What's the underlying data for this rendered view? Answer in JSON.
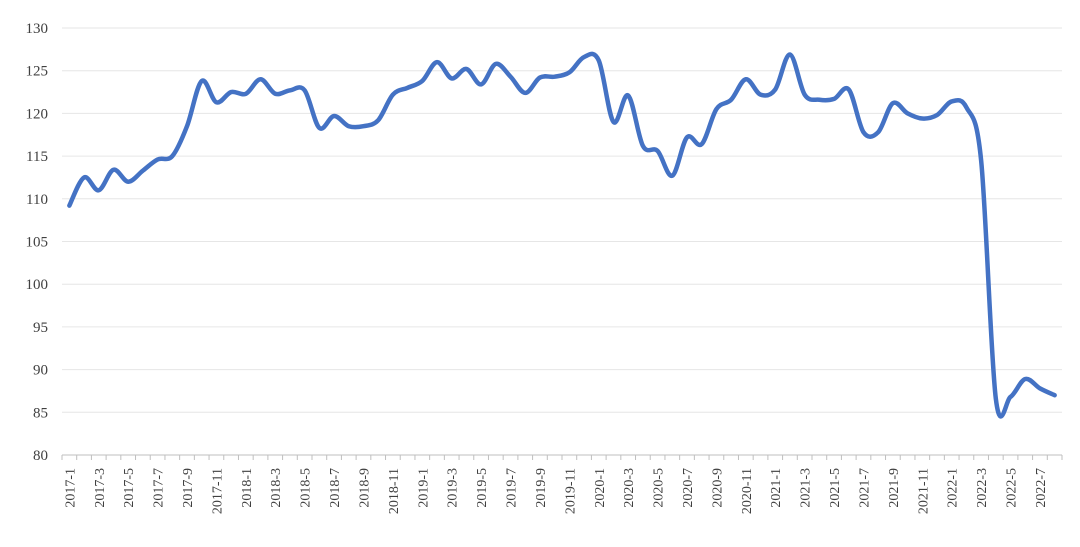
{
  "chart_data": {
    "type": "line",
    "title": "",
    "xlabel": "",
    "ylabel": "",
    "ylim": [
      80,
      130
    ],
    "yticks": [
      80,
      85,
      90,
      95,
      100,
      105,
      110,
      115,
      120,
      125,
      130
    ],
    "grid": true,
    "legend": "none",
    "categories": [
      "2017-1",
      "2017-2",
      "2017-3",
      "2017-4",
      "2017-5",
      "2017-6",
      "2017-7",
      "2017-8",
      "2017-9",
      "2017-10",
      "2017-11",
      "2017-12",
      "2018-1",
      "2018-2",
      "2018-3",
      "2018-4",
      "2018-5",
      "2018-6",
      "2018-7",
      "2018-8",
      "2018-9",
      "2018-10",
      "2018-11",
      "2018-12",
      "2019-1",
      "2019-2",
      "2019-3",
      "2019-4",
      "2019-5",
      "2019-6",
      "2019-7",
      "2019-8",
      "2019-9",
      "2019-10",
      "2019-11",
      "2019-12",
      "2020-1",
      "2020-2",
      "2020-3",
      "2020-4",
      "2020-5",
      "2020-6",
      "2020-7",
      "2020-8",
      "2020-9",
      "2020-10",
      "2020-11",
      "2020-12",
      "2021-1",
      "2021-2",
      "2021-3",
      "2021-4",
      "2021-5",
      "2021-6",
      "2021-7",
      "2021-8",
      "2021-9",
      "2021-10",
      "2021-11",
      "2021-12",
      "2022-1",
      "2022-2",
      "2022-3",
      "2022-4",
      "2022-5",
      "2022-6",
      "2022-7",
      "2022-8"
    ],
    "tick_labels": [
      "2017-1",
      "2017-3",
      "2017-5",
      "2017-7",
      "2017-9",
      "2017-11",
      "2018-1",
      "2018-3",
      "2018-5",
      "2018-7",
      "2018-9",
      "2018-11",
      "2019-1",
      "2019-3",
      "2019-5",
      "2019-7",
      "2019-9",
      "2019-11",
      "2020-1",
      "2020-3",
      "2020-5",
      "2020-7",
      "2020-9",
      "2020-11",
      "2021-1",
      "2021-3",
      "2021-5",
      "2021-7",
      "2021-9",
      "2021-11",
      "2022-1",
      "2022-3",
      "2022-5",
      "2022-7"
    ],
    "series": [
      {
        "color": "#4472C4",
        "values": [
          109.2,
          112.5,
          111.0,
          113.4,
          112.0,
          113.3,
          114.6,
          115.0,
          118.5,
          123.8,
          121.3,
          122.5,
          122.3,
          124.0,
          122.3,
          122.7,
          122.7,
          118.3,
          119.7,
          118.5,
          118.5,
          119.2,
          122.2,
          123.0,
          123.8,
          126.0,
          124.1,
          125.2,
          123.4,
          125.8,
          124.3,
          122.4,
          124.2,
          124.3,
          124.8,
          126.6,
          126.2,
          119.0,
          122.1,
          116.2,
          115.6,
          112.7,
          117.2,
          116.4,
          120.5,
          121.6,
          124.0,
          122.2,
          122.8,
          126.9,
          122.2,
          121.6,
          121.7,
          122.8,
          117.8,
          117.8,
          121.2,
          120.0,
          119.4,
          119.8,
          121.4,
          120.7,
          114.5,
          86.6,
          86.8,
          88.9,
          87.8,
          87.0
        ]
      }
    ]
  }
}
